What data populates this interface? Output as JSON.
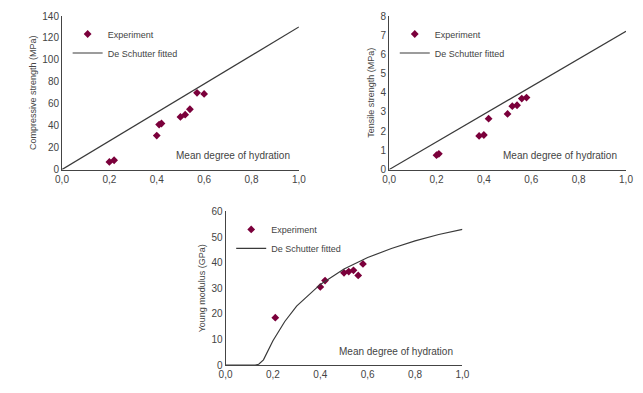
{
  "chart_data": [
    {
      "type": "scatter",
      "xlabel": "Mean degree of hydration",
      "ylabel": "Compressive strength (MPa)",
      "xlim": [
        0.0,
        1.0
      ],
      "xticks": [
        {
          "value": 0.0,
          "label": "0,0"
        },
        {
          "value": 0.2,
          "label": "0,2"
        },
        {
          "value": 0.4,
          "label": "0,4"
        },
        {
          "value": 0.6,
          "label": "0,6"
        },
        {
          "value": 0.8,
          "label": "0,8"
        },
        {
          "value": 1.0,
          "label": "1,0"
        }
      ],
      "ylim": [
        0,
        140
      ],
      "yticks": [
        0,
        20,
        40,
        60,
        80,
        100,
        120,
        140
      ],
      "grid": false,
      "legend": "upper left",
      "series": [
        {
          "name": "Experiment",
          "type": "scatter",
          "marker": "diamond",
          "color": "#7b003b",
          "x": [
            0.2,
            0.22,
            0.4,
            0.41,
            0.42,
            0.5,
            0.52,
            0.54,
            0.57,
            0.6
          ],
          "values": [
            7.0,
            8.5,
            31.0,
            41.0,
            42.0,
            48.0,
            50.0,
            55.0,
            70.0,
            69.0
          ]
        },
        {
          "name": "De Schutter fitted",
          "type": "line",
          "color": "#3a3a3a",
          "x": [
            0.0,
            1.0
          ],
          "values": [
            0.0,
            130.0
          ]
        }
      ]
    },
    {
      "type": "scatter",
      "xlabel": "Mean degree of hydration",
      "ylabel": "Tensile strength (MPa)",
      "xlim": [
        0.0,
        1.0
      ],
      "xticks": [
        {
          "value": 0.0,
          "label": "0,0"
        },
        {
          "value": 0.2,
          "label": "0,2"
        },
        {
          "value": 0.4,
          "label": "0,4"
        },
        {
          "value": 0.6,
          "label": "0,6"
        },
        {
          "value": 0.8,
          "label": "0,8"
        },
        {
          "value": 1.0,
          "label": "1,0"
        }
      ],
      "ylim": [
        0,
        8
      ],
      "yticks": [
        0,
        1,
        2,
        3,
        4,
        5,
        6,
        7,
        8
      ],
      "grid": false,
      "legend": "upper left",
      "series": [
        {
          "name": "Experiment",
          "type": "scatter",
          "marker": "diamond",
          "color": "#7b003b",
          "x": [
            0.2,
            0.21,
            0.38,
            0.4,
            0.42,
            0.5,
            0.52,
            0.54,
            0.56,
            0.58
          ],
          "values": [
            0.75,
            0.82,
            1.75,
            1.8,
            2.65,
            2.9,
            3.3,
            3.35,
            3.7,
            3.75
          ]
        },
        {
          "name": "De Schutter fitted",
          "type": "line",
          "color": "#3a3a3a",
          "x": [
            0.0,
            1.0
          ],
          "values": [
            0.0,
            7.2
          ]
        }
      ]
    },
    {
      "type": "scatter",
      "xlabel": "Mean degree of hydration",
      "ylabel": "Young modulus (GPa)",
      "xlim": [
        0.0,
        1.0
      ],
      "xticks": [
        {
          "value": 0.0,
          "label": "0,0"
        },
        {
          "value": 0.2,
          "label": "0,2"
        },
        {
          "value": 0.4,
          "label": "0,4"
        },
        {
          "value": 0.6,
          "label": "0,6"
        },
        {
          "value": 0.8,
          "label": "0,8"
        },
        {
          "value": 1.0,
          "label": "1,0"
        }
      ],
      "ylim": [
        0,
        60
      ],
      "yticks": [
        0,
        10,
        20,
        30,
        40,
        50,
        60
      ],
      "grid": false,
      "legend": "upper left",
      "series": [
        {
          "name": "Experiment",
          "type": "scatter",
          "marker": "diamond",
          "color": "#7b003b",
          "x": [
            0.21,
            0.4,
            0.42,
            0.5,
            0.52,
            0.54,
            0.56,
            0.58
          ],
          "values": [
            18.5,
            30.5,
            33.0,
            36.0,
            36.5,
            37.0,
            35.0,
            39.5
          ]
        },
        {
          "name": "De Schutter fitted",
          "type": "line",
          "color": "#3a3a3a",
          "x": [
            0.0,
            0.12,
            0.125,
            0.14,
            0.16,
            0.2,
            0.25,
            0.3,
            0.4,
            0.5,
            0.6,
            0.7,
            0.8,
            0.9,
            1.0
          ],
          "values": [
            0.0,
            0.0,
            0.0,
            0.3,
            2.0,
            9.5,
            17.0,
            23.0,
            31.5,
            37.5,
            42.0,
            45.5,
            48.5,
            51.0,
            53.0
          ]
        }
      ]
    }
  ]
}
